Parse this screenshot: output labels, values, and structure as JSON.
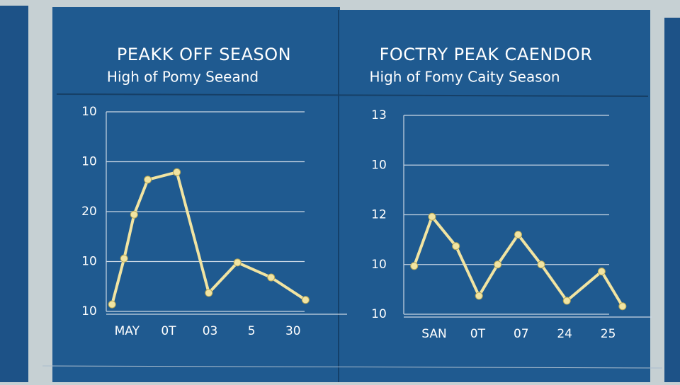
{
  "chart_data": [
    {
      "type": "line",
      "title": "PEAKK OFF SEASON",
      "subtitle": "High of Pomy Seeand",
      "x": [
        0.64,
        0.93,
        1.17,
        1.5,
        2.2,
        2.97,
        3.66,
        4.47,
        5.3
      ],
      "values": [
        0.14,
        1.06,
        1.94,
        2.64,
        2.79,
        0.37,
        0.98,
        0.68,
        0.23
      ],
      "color": "#f1e4a2",
      "xlim": [
        0.5,
        6.3
      ],
      "xticks": [
        {
          "value": 1,
          "label": "MAY"
        },
        {
          "value": 2,
          "label": "0T"
        },
        {
          "value": 3,
          "label": "03"
        },
        {
          "value": 4,
          "label": "5"
        },
        {
          "value": 5,
          "label": "30"
        }
      ],
      "ylim": [
        0,
        4
      ],
      "yticks": [
        {
          "value": 0,
          "label": "10"
        },
        {
          "value": 1,
          "label": "10"
        },
        {
          "value": 2,
          "label": "20"
        },
        {
          "value": 3,
          "label": "10"
        },
        {
          "value": 4,
          "label": "10"
        }
      ],
      "grid": true
    },
    {
      "type": "line",
      "title": "FOCTRY PEAK CAENDOR",
      "subtitle": "High of Fomy Caity Season",
      "x": [
        0.54,
        0.95,
        1.5,
        2.03,
        2.46,
        2.93,
        3.46,
        4.05,
        4.85,
        5.33
      ],
      "values": [
        0.97,
        1.96,
        1.37,
        0.37,
        1.0,
        1.6,
        1.0,
        0.27,
        0.86,
        0.16
      ],
      "color": "#f1e4a2",
      "xlim": [
        0.3,
        6
      ],
      "xticks": [
        {
          "value": 1,
          "label": "SAN"
        },
        {
          "value": 2,
          "label": "0T"
        },
        {
          "value": 3,
          "label": "07"
        },
        {
          "value": 4,
          "label": "24"
        },
        {
          "value": 5,
          "label": "25"
        }
      ],
      "ylim": [
        0,
        4
      ],
      "yticks": [
        {
          "value": 0,
          "label": "10"
        },
        {
          "value": 1,
          "label": "10"
        },
        {
          "value": 2,
          "label": "12"
        },
        {
          "value": 3,
          "label": "10"
        },
        {
          "value": 4,
          "label": "13"
        }
      ],
      "grid": true
    }
  ]
}
